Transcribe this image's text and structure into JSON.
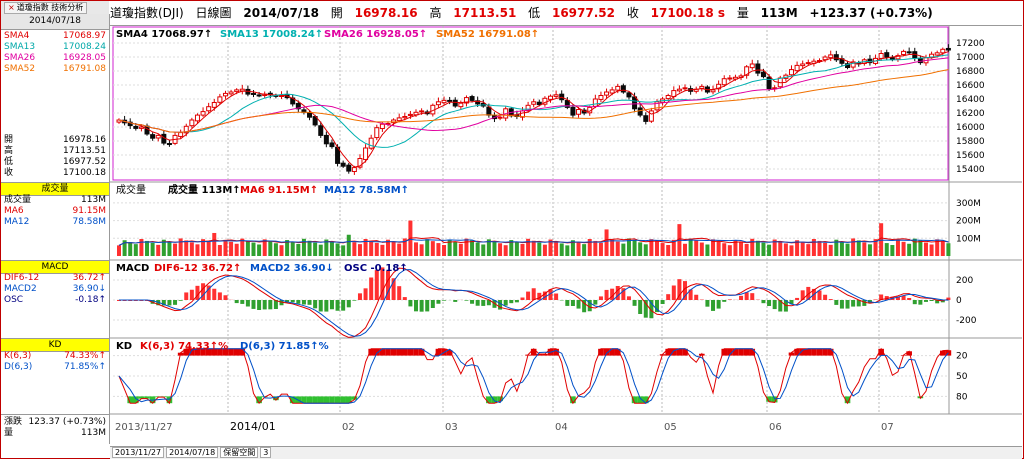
{
  "tabs": {
    "label": "道瓊指數 技術分析",
    "close": "×"
  },
  "left": {
    "date": "2014/07/18",
    "sma": [
      {
        "k": "SMA4",
        "v": "17068.97",
        "c": "#e00000"
      },
      {
        "k": "SMA13",
        "v": "17008.24",
        "c": "#00a8a8"
      },
      {
        "k": "SMA26",
        "v": "16928.05",
        "c": "#e000a0"
      },
      {
        "k": "SMA52",
        "v": "16791.08",
        "c": "#f07000"
      }
    ],
    "ohlc": [
      {
        "k": "開",
        "v": "16978.16"
      },
      {
        "k": "高",
        "v": "17113.51"
      },
      {
        "k": "低",
        "v": "16977.52"
      },
      {
        "k": "收",
        "v": "17100.18"
      }
    ],
    "vol_head": "成交量",
    "vol": [
      {
        "k": "成交量",
        "v": "113M",
        "c": "#000"
      },
      {
        "k": "MA6",
        "v": "91.15M",
        "c": "#e00000"
      },
      {
        "k": "MA12",
        "v": "78.58M",
        "c": "#0050c8"
      }
    ],
    "macd_head": "MACD",
    "macd": [
      {
        "k": "DIF6-12",
        "v": "36.72",
        "c": "#e00000",
        "a": "↑"
      },
      {
        "k": "MACD2",
        "v": "36.90",
        "c": "#0050c8",
        "a": "↓"
      },
      {
        "k": "OSC",
        "v": "-0.18",
        "c": "#000080",
        "a": "↑"
      }
    ],
    "kd_head": "KD",
    "kd": [
      {
        "k": "K(6,3)",
        "v": "74.33%",
        "c": "#e00000",
        "a": "↑"
      },
      {
        "k": "D(6,3)",
        "v": "71.85%",
        "c": "#0050c8",
        "a": "↑"
      }
    ],
    "change": {
      "k": "漲跌",
      "v": "123.37 (+0.73%)"
    },
    "volume": {
      "k": "量",
      "v": "113M"
    }
  },
  "header": {
    "name": "道瓊指數(DJI)",
    "type": "日線圖",
    "date": "2014/07/18",
    "open_l": "開",
    "open": "16978.16",
    "high_l": "高",
    "high": "17113.51",
    "low_l": "低",
    "low": "16977.52",
    "close_l": "收",
    "close": "17100.18 s",
    "vol_l": "量",
    "vol": "113M",
    "change": "+123.37 (+0.73%)"
  },
  "panel_labels": {
    "price": [
      "SMA4 17068.97↑",
      "SMA13 17008.24↑",
      "SMA26 16928.05↑",
      "SMA52 16791.08↑"
    ],
    "vol": [
      "成交量",
      "成交量 113M↑",
      "MA6 91.15M↑",
      "MA12 78.58M↑"
    ],
    "macd": [
      "MACD",
      "DIF6-12 36.72↑",
      "MACD2 36.90↓",
      "OSC -0.18↑"
    ],
    "kd": [
      "KD",
      "K(6,3) 74.33↑%",
      "D(6,3) 71.85↑%"
    ]
  },
  "status": {
    "start": "2013/11/27",
    "end": "2014/07/18",
    "mode": "保留空間",
    "n": "3"
  },
  "colors": {
    "up": "#e00000",
    "down": "#0a0a0a",
    "volup": "#ff3030",
    "voldown": "#30a030",
    "sma4": "#e00000",
    "sma13": "#00b0b0",
    "sma26": "#e000a0",
    "sma52": "#f07000",
    "k": "#e00000",
    "d": "#0050c8"
  },
  "chart_data": {
    "type": "candlestick",
    "x_labels": [
      "2013/11/27",
      "2014/01",
      "02",
      "03",
      "04",
      "05",
      "06",
      "07"
    ],
    "price_ticks": [
      15400,
      15600,
      15800,
      16000,
      16200,
      16400,
      16600,
      16800,
      17000,
      17200
    ],
    "price_ylim": [
      15300,
      17300
    ],
    "vol_ticks": [
      "100M",
      "200M",
      "300M"
    ],
    "vol_ylim": [
      0,
      350
    ],
    "macd_ticks": [
      "200",
      "0",
      "-200"
    ],
    "macd_ylim": [
      -300,
      300
    ],
    "kd_ticks": [
      "20",
      "50",
      "80"
    ],
    "kd_ylim": [
      0,
      100
    ],
    "close_series": [
      16100,
      16060,
      16020,
      15980,
      16000,
      15900,
      15840,
      15880,
      15770,
      15760,
      15880,
      15920,
      16010,
      16100,
      16170,
      16220,
      16290,
      16350,
      16430,
      16480,
      16500,
      16530,
      16540,
      16470,
      16470,
      16450,
      16470,
      16460,
      16440,
      16450,
      16420,
      16330,
      16260,
      16210,
      16140,
      16030,
      15880,
      15760,
      15720,
      15480,
      15440,
      15370,
      15420,
      15550,
      15700,
      15840,
      15990,
      16040,
      16050,
      16100,
      16130,
      16150,
      16180,
      16210,
      16230,
      16190,
      16310,
      16360,
      16380,
      16370,
      16300,
      16340,
      16420,
      16380,
      16330,
      16300,
      16170,
      16120,
      16140,
      16260,
      16160,
      16150,
      16230,
      16310,
      16360,
      16320,
      16410,
      16440,
      16460,
      16390,
      16280,
      16170,
      16250,
      16200,
      16280,
      16400,
      16450,
      16500,
      16530,
      16580,
      16500,
      16430,
      16260,
      16170,
      16080,
      16230,
      16360,
      16400,
      16450,
      16520,
      16540,
      16560,
      16510,
      16540,
      16580,
      16500,
      16530,
      16610,
      16690,
      16700,
      16710,
      16730,
      16860,
      16900,
      16770,
      16720,
      16550,
      16560,
      16700,
      16740,
      16820,
      16880,
      16900,
      16920,
      16940,
      16950,
      17000,
      17030,
      16960,
      16910,
      16850,
      16930,
      16910,
      16960,
      16920,
      16980,
      17050,
      17000,
      16970,
      17020,
      17080,
      17070,
      16990,
      16920,
      16990,
      17040,
      17060,
      17110,
      17100
    ],
    "sma4_last": 17068.97,
    "sma13_last": 17008.24,
    "sma26_last": 16928.05,
    "sma52_last": 16791.08,
    "volume_last": "113M",
    "ma6_last": "91.15M",
    "ma12_last": "78.58M",
    "dif_last": 36.72,
    "macd_last": 36.9,
    "osc_last": -0.18,
    "k_last": 74.33,
    "d_last": 71.85
  }
}
